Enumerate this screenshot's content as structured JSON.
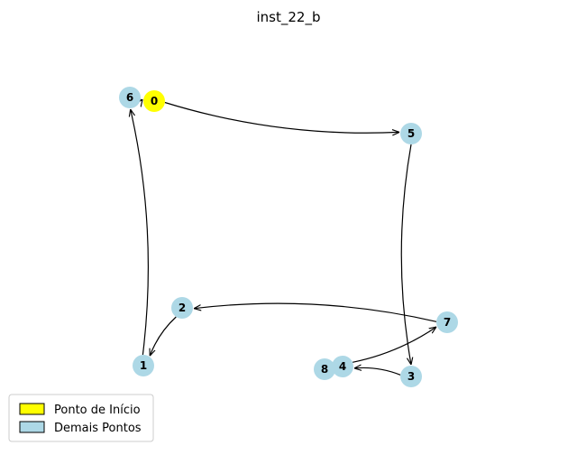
{
  "title": "inst_22_b",
  "colors": {
    "start": "#ffff00",
    "other": "#add8e6",
    "edge": "#000000"
  },
  "nodes": [
    {
      "id": "0",
      "role": "start"
    },
    {
      "id": "1",
      "role": "other"
    },
    {
      "id": "2",
      "role": "other"
    },
    {
      "id": "3",
      "role": "other"
    },
    {
      "id": "4",
      "role": "other"
    },
    {
      "id": "5",
      "role": "other"
    },
    {
      "id": "6",
      "role": "other"
    },
    {
      "id": "7",
      "role": "other"
    },
    {
      "id": "8",
      "role": "other"
    }
  ],
  "edges": [
    {
      "from": "6",
      "to": "0"
    },
    {
      "from": "0",
      "to": "5"
    },
    {
      "from": "5",
      "to": "3"
    },
    {
      "from": "3",
      "to": "4"
    },
    {
      "from": "4",
      "to": "7"
    },
    {
      "from": "7",
      "to": "2"
    },
    {
      "from": "2",
      "to": "1"
    },
    {
      "from": "1",
      "to": "6"
    }
  ],
  "legend": [
    {
      "label": "Ponto de Início",
      "role": "start"
    },
    {
      "label": "Demais Pontos",
      "role": "other"
    }
  ]
}
